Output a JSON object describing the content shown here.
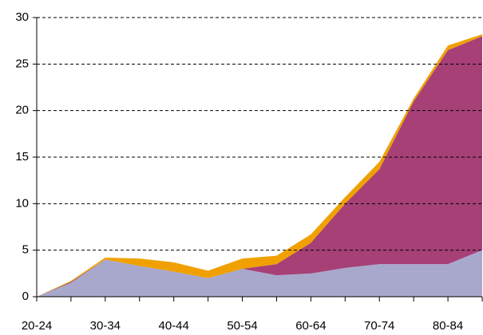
{
  "chart_data": {
    "type": "stacked_area",
    "categories": [
      "20-24",
      null,
      "30-34",
      null,
      "40-44",
      null,
      "50-54",
      null,
      "60-64",
      null,
      "70-74",
      null,
      "80-84",
      null
    ],
    "series": [
      {
        "color": "#a8a8cc",
        "values": [
          0,
          1.5,
          4.0,
          3.3,
          2.7,
          2.0,
          3.0,
          2.3,
          2.5,
          3.1,
          3.5,
          3.5,
          3.5,
          5.0
        ]
      },
      {
        "color": "#a64077",
        "values": [
          0,
          0.1,
          0,
          0,
          0,
          0,
          0,
          1.2,
          3.3,
          6.9,
          10.2,
          17.5,
          23.0,
          23.0
        ]
      },
      {
        "color": "#f0a000",
        "values": [
          0,
          0.1,
          0.2,
          0.8,
          1.0,
          0.8,
          1.1,
          0.9,
          0.9,
          0.7,
          0.8,
          0.3,
          0.5,
          0.2
        ]
      }
    ],
    "ylim": [
      0,
      30
    ],
    "yticks": [
      0,
      5,
      10,
      15,
      20,
      25,
      30
    ],
    "grid": true
  }
}
